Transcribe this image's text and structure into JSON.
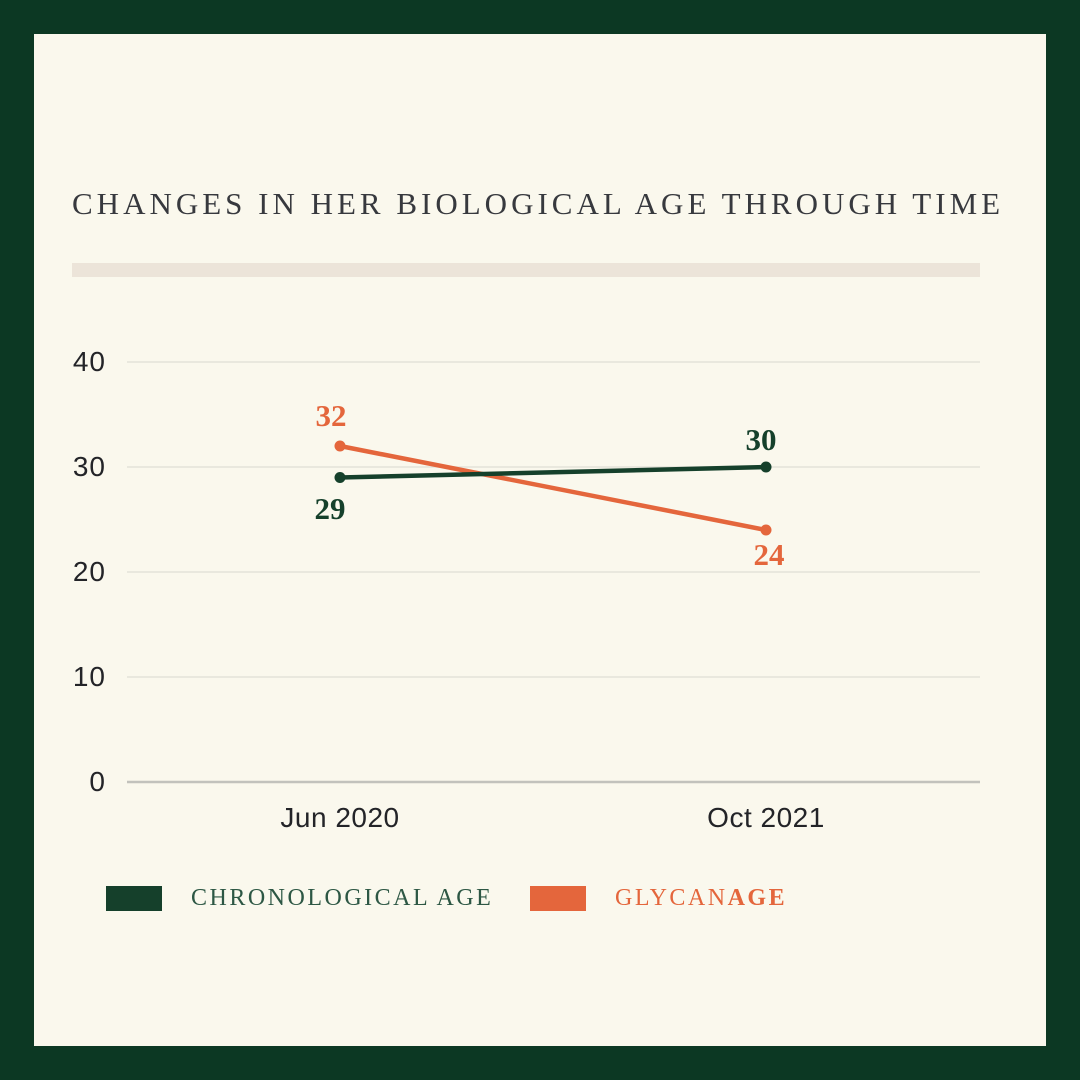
{
  "title": "CHANGES IN HER BIOLOGICAL AGE THROUGH TIME",
  "colors": {
    "frame_green": "#0c3823",
    "card_cream": "#faf8ed",
    "title_text": "#37393e",
    "divider_beige": "#ece4d9",
    "chronological_green": "#15402b",
    "glycanage_orange": "#e4663c",
    "legend_text_green": "#2d5744",
    "gridline": "#e3e2da",
    "zero_axis_line": "#c2c2bc",
    "axis_text": "#232428"
  },
  "chart_data": {
    "type": "line",
    "title": "CHANGES IN HER BIOLOGICAL AGE THROUGH TIME",
    "categories": [
      "Jun 2020",
      "Oct 2021"
    ],
    "series": [
      {
        "name": "CHRONOLOGICAL AGE",
        "values": [
          29,
          30
        ],
        "color": "#15402b",
        "data_labels": [
          "29",
          "30"
        ]
      },
      {
        "name": "GLYCANAGE",
        "values": [
          32,
          24
        ],
        "color": "#e4663c",
        "data_labels": [
          "32",
          "24"
        ]
      }
    ],
    "xlabel": "",
    "ylabel": "",
    "ylim": [
      0,
      40
    ],
    "yticks": [
      0,
      10,
      20,
      30,
      40
    ],
    "grid": "horizontal",
    "legend_position": "bottom"
  },
  "legend": {
    "chronological": {
      "label": "CHRONOLOGICAL AGE"
    },
    "glycanage": {
      "label_regular": "GLYCAN",
      "label_bold": "AGE"
    }
  }
}
